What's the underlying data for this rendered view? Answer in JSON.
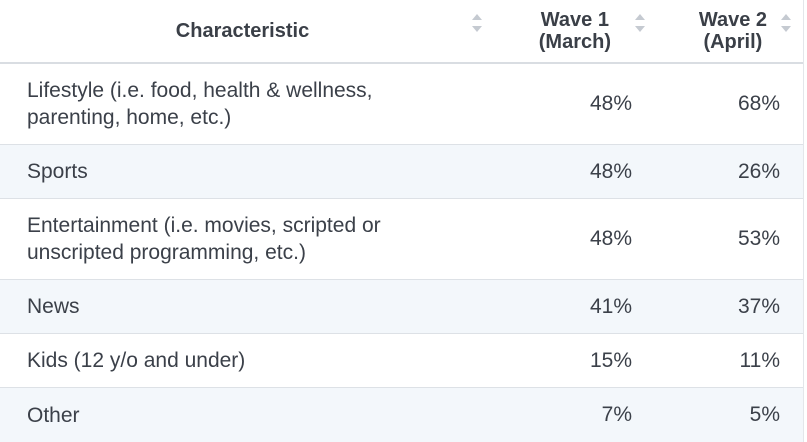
{
  "table": {
    "columns": [
      {
        "label": "Characteristic",
        "sort_icon": "sort-updown-icon"
      },
      {
        "label": "Wave 1\n(March)",
        "sort_icon": "sort-updown-icon"
      },
      {
        "label": "Wave 2\n(April)",
        "sort_icon": "sort-updown-icon"
      }
    ],
    "rows": [
      {
        "characteristic": "Lifestyle (i.e. food, health & wellness, parenting, home, etc.)",
        "wave1": "48%",
        "wave2": "68%"
      },
      {
        "characteristic": "Sports",
        "wave1": "48%",
        "wave2": "26%"
      },
      {
        "characteristic": "Entertainment (i.e. movies, scripted or unscripted programming, etc.)",
        "wave1": "48%",
        "wave2": "53%"
      },
      {
        "characteristic": "News",
        "wave1": "41%",
        "wave2": "37%"
      },
      {
        "characteristic": "Kids (12 y/o and under)",
        "wave1": "15%",
        "wave2": "11%"
      },
      {
        "characteristic": "Other",
        "wave1": "7%",
        "wave2": "5%"
      }
    ]
  },
  "colors": {
    "header_text": "#3a3f47",
    "body_text": "#3b4049",
    "alt_row_bg": "#f3f7fb",
    "border": "#dde1e6",
    "sort_icon": "#b8bec6"
  }
}
